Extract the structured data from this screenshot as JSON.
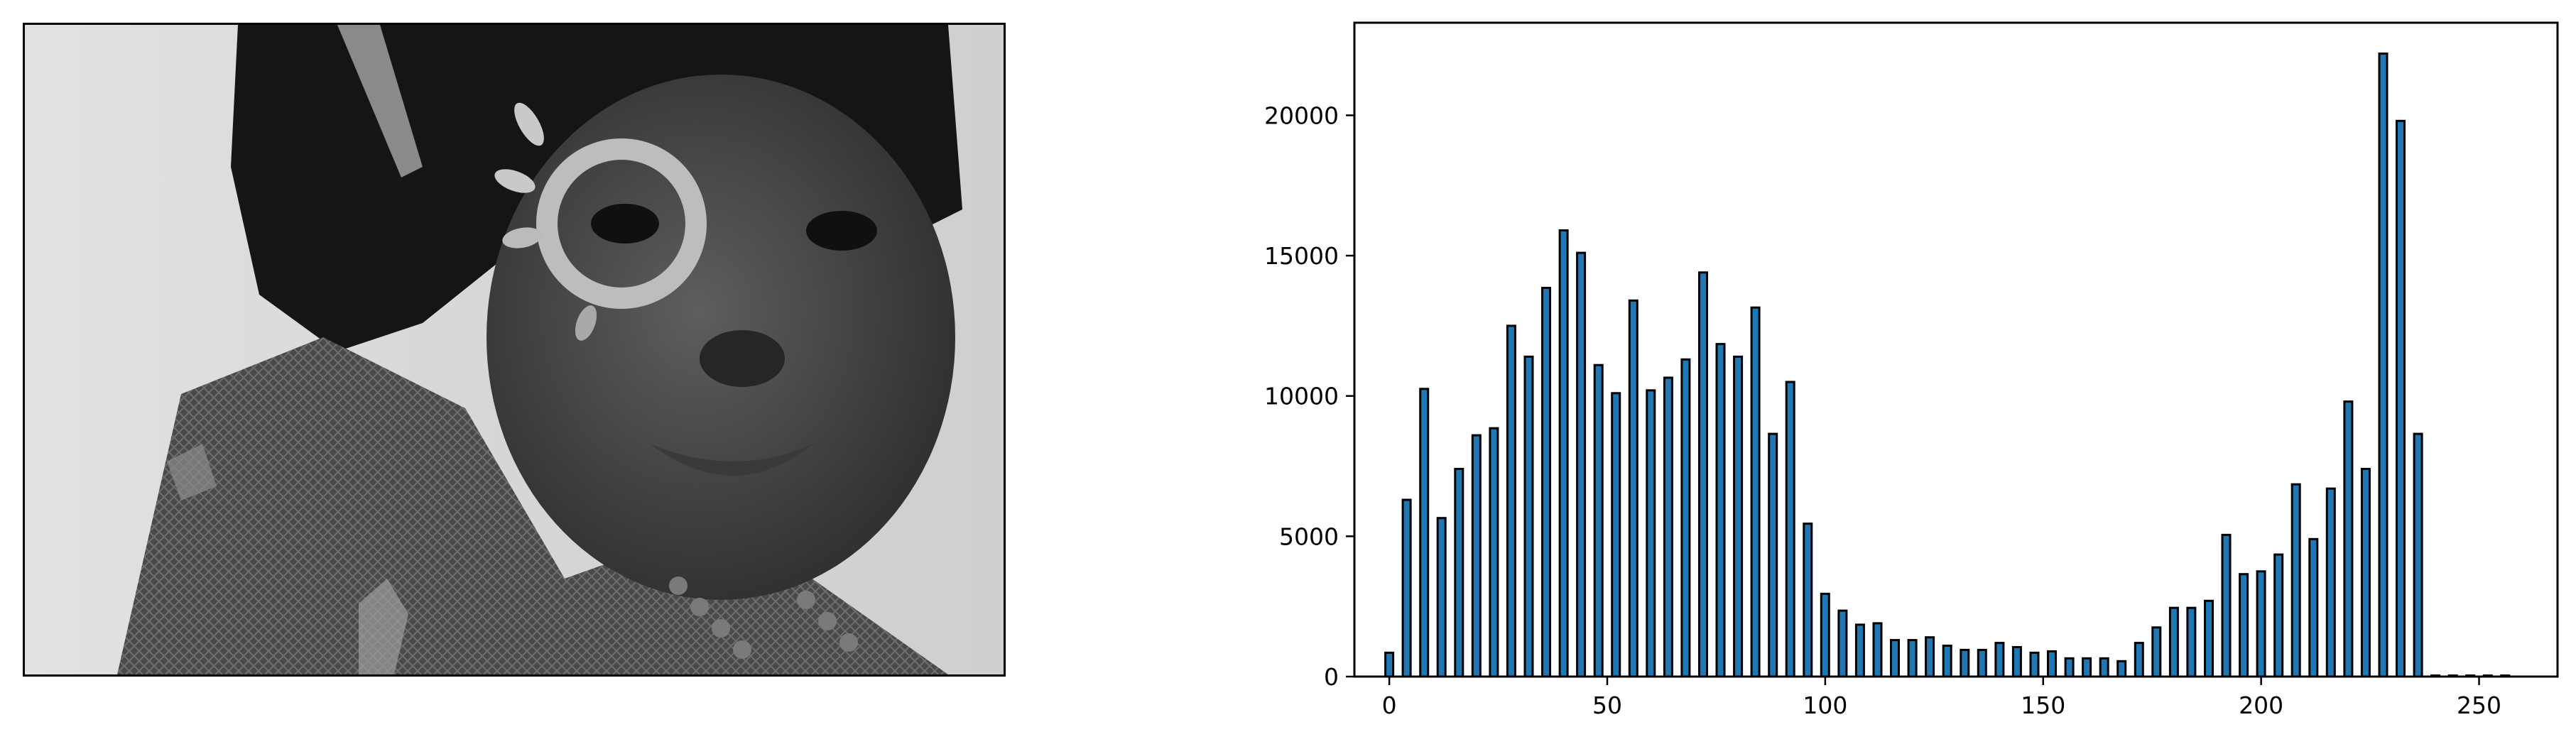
{
  "image_panel": {
    "subject": "grayscale-portrait-photo",
    "has_axes": false
  },
  "chart_data": {
    "type": "bar",
    "title": "",
    "xlabel": "",
    "ylabel": "",
    "xlim": [
      -8,
      268
    ],
    "ylim": [
      0,
      23300
    ],
    "x_ticks": [
      0,
      50,
      100,
      150,
      200,
      250
    ],
    "y_ticks": [
      0,
      5000,
      10000,
      15000,
      20000
    ],
    "grid": false,
    "legend": "none",
    "bar_color": "#1f77b4",
    "edge_color": "#000000",
    "x": [
      0,
      4,
      8,
      12,
      16,
      20,
      24,
      28,
      32,
      36,
      40,
      44,
      48,
      52,
      56,
      60,
      64,
      68,
      72,
      76,
      80,
      84,
      88,
      92,
      96,
      100,
      104,
      108,
      112,
      116,
      120,
      124,
      128,
      132,
      136,
      140,
      144,
      148,
      152,
      156,
      160,
      164,
      168,
      172,
      176,
      180,
      184,
      188,
      192,
      196,
      200,
      204,
      208,
      212,
      216,
      220,
      224,
      228,
      232,
      236,
      240,
      244,
      248,
      252,
      256
    ],
    "values": [
      850,
      6300,
      10250,
      5650,
      7400,
      8600,
      8850,
      12500,
      11400,
      13850,
      15900,
      15100,
      11100,
      10100,
      13400,
      10200,
      10650,
      11300,
      14400,
      11850,
      11400,
      13150,
      8650,
      10500,
      5450,
      2950,
      2350,
      1850,
      1900,
      1300,
      1300,
      1400,
      1100,
      950,
      950,
      1200,
      1050,
      850,
      900,
      650,
      650,
      650,
      550,
      1200,
      1750,
      2450,
      2450,
      2700,
      5050,
      3650,
      3750,
      4350,
      6850,
      4900,
      6700,
      9800,
      7400,
      22200,
      19800,
      8650,
      0,
      0,
      0,
      0,
      0
    ]
  }
}
